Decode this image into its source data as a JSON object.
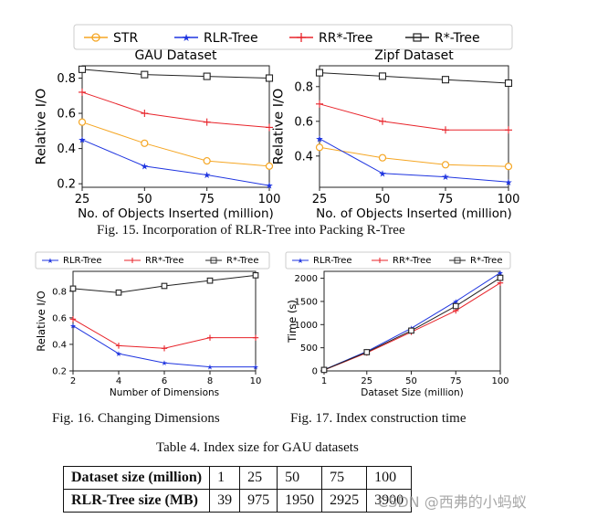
{
  "fig15": {
    "legend": [
      "STR",
      "RLR-Tree",
      "RR*-Tree",
      "R*-Tree"
    ],
    "caption": "Fig. 15.  Incorporation of RLR-Tree into Packing R-Tree"
  },
  "fig16": {
    "caption": "Fig. 16.  Changing Dimensions"
  },
  "fig17": {
    "caption": "Fig. 17.  Index construction time"
  },
  "table": {
    "caption": "Table 4.  Index size for GAU datasets",
    "rows": [
      [
        "Dataset size (million)",
        "1",
        "25",
        "50",
        "75",
        "100"
      ],
      [
        "RLR-Tree size (MB)",
        "39",
        "975",
        "1950",
        "2925",
        "3900"
      ]
    ]
  },
  "watermark": "CSDN @西弗的小蚂蚁",
  "colors": {
    "STR": "#f5a623",
    "RLR-Tree": "#1f35e0",
    "RR*-Tree": "#e8232a",
    "R*-Tree": "#222222"
  },
  "chart_data": [
    {
      "type": "line",
      "title": "GAU Dataset",
      "xlabel": "No. of Objects Inserted (million)",
      "ylabel": "Relative I/O",
      "x": [
        25,
        50,
        75,
        100
      ],
      "xlim": [
        25,
        100
      ],
      "ylim": [
        0.18,
        0.87
      ],
      "yticks": [
        0.2,
        0.4,
        0.6,
        0.8
      ],
      "series": [
        {
          "name": "STR",
          "values": [
            0.55,
            0.43,
            0.33,
            0.3
          ],
          "marker": "o"
        },
        {
          "name": "RLR-Tree",
          "values": [
            0.45,
            0.3,
            0.25,
            0.19
          ],
          "marker": "*"
        },
        {
          "name": "RR*-Tree",
          "values": [
            0.72,
            0.6,
            0.55,
            0.52
          ],
          "marker": "+"
        },
        {
          "name": "R*-Tree",
          "values": [
            0.85,
            0.82,
            0.81,
            0.8
          ],
          "marker": "s"
        }
      ]
    },
    {
      "type": "line",
      "title": "Zipf Dataset",
      "xlabel": "No. of Objects Inserted (million)",
      "ylabel": "Relative I/O",
      "x": [
        25,
        50,
        75,
        100
      ],
      "xlim": [
        25,
        100
      ],
      "ylim": [
        0.22,
        0.92
      ],
      "yticks": [
        0.4,
        0.6,
        0.8
      ],
      "series": [
        {
          "name": "STR",
          "values": [
            0.45,
            0.39,
            0.35,
            0.34
          ],
          "marker": "o"
        },
        {
          "name": "RLR-Tree",
          "values": [
            0.5,
            0.3,
            0.28,
            0.25
          ],
          "marker": "*"
        },
        {
          "name": "RR*-Tree",
          "values": [
            0.7,
            0.6,
            0.55,
            0.55
          ],
          "marker": "+"
        },
        {
          "name": "R*-Tree",
          "values": [
            0.88,
            0.86,
            0.84,
            0.82
          ],
          "marker": "s"
        }
      ]
    },
    {
      "type": "line",
      "xlabel": "Number of Dimensions",
      "ylabel": "Relative I/O",
      "x": [
        2,
        4,
        6,
        8,
        10
      ],
      "xlim": [
        2,
        10
      ],
      "ylim": [
        0.2,
        0.95
      ],
      "yticks": [
        0.2,
        0.4,
        0.6,
        0.8
      ],
      "legend": [
        "RLR-Tree",
        "RR*-Tree",
        "R*-Tree"
      ],
      "series": [
        {
          "name": "RLR-Tree",
          "values": [
            0.54,
            0.33,
            0.26,
            0.23,
            0.23
          ],
          "marker": "*"
        },
        {
          "name": "RR*-Tree",
          "values": [
            0.59,
            0.39,
            0.37,
            0.45,
            0.45
          ],
          "marker": "+"
        },
        {
          "name": "R*-Tree",
          "values": [
            0.82,
            0.79,
            0.84,
            0.88,
            0.92
          ],
          "marker": "s"
        }
      ]
    },
    {
      "type": "line",
      "xlabel": "Dataset Size (million)",
      "ylabel": "Time (s)",
      "x": [
        1,
        25,
        50,
        75,
        100
      ],
      "xlim": [
        1,
        100
      ],
      "ylim": [
        0,
        2150
      ],
      "yticks": [
        0,
        500,
        1000,
        1500,
        2000
      ],
      "legend": [
        "RLR-Tree",
        "RR*-Tree",
        "R*-Tree"
      ],
      "series": [
        {
          "name": "RLR-Tree",
          "values": [
            25,
            420,
            920,
            1500,
            2120
          ],
          "marker": "*"
        },
        {
          "name": "RR*-Tree",
          "values": [
            20,
            390,
            840,
            1300,
            1900
          ],
          "marker": "+"
        },
        {
          "name": "R*-Tree",
          "values": [
            22,
            405,
            870,
            1400,
            2010
          ],
          "marker": "s"
        }
      ]
    }
  ]
}
